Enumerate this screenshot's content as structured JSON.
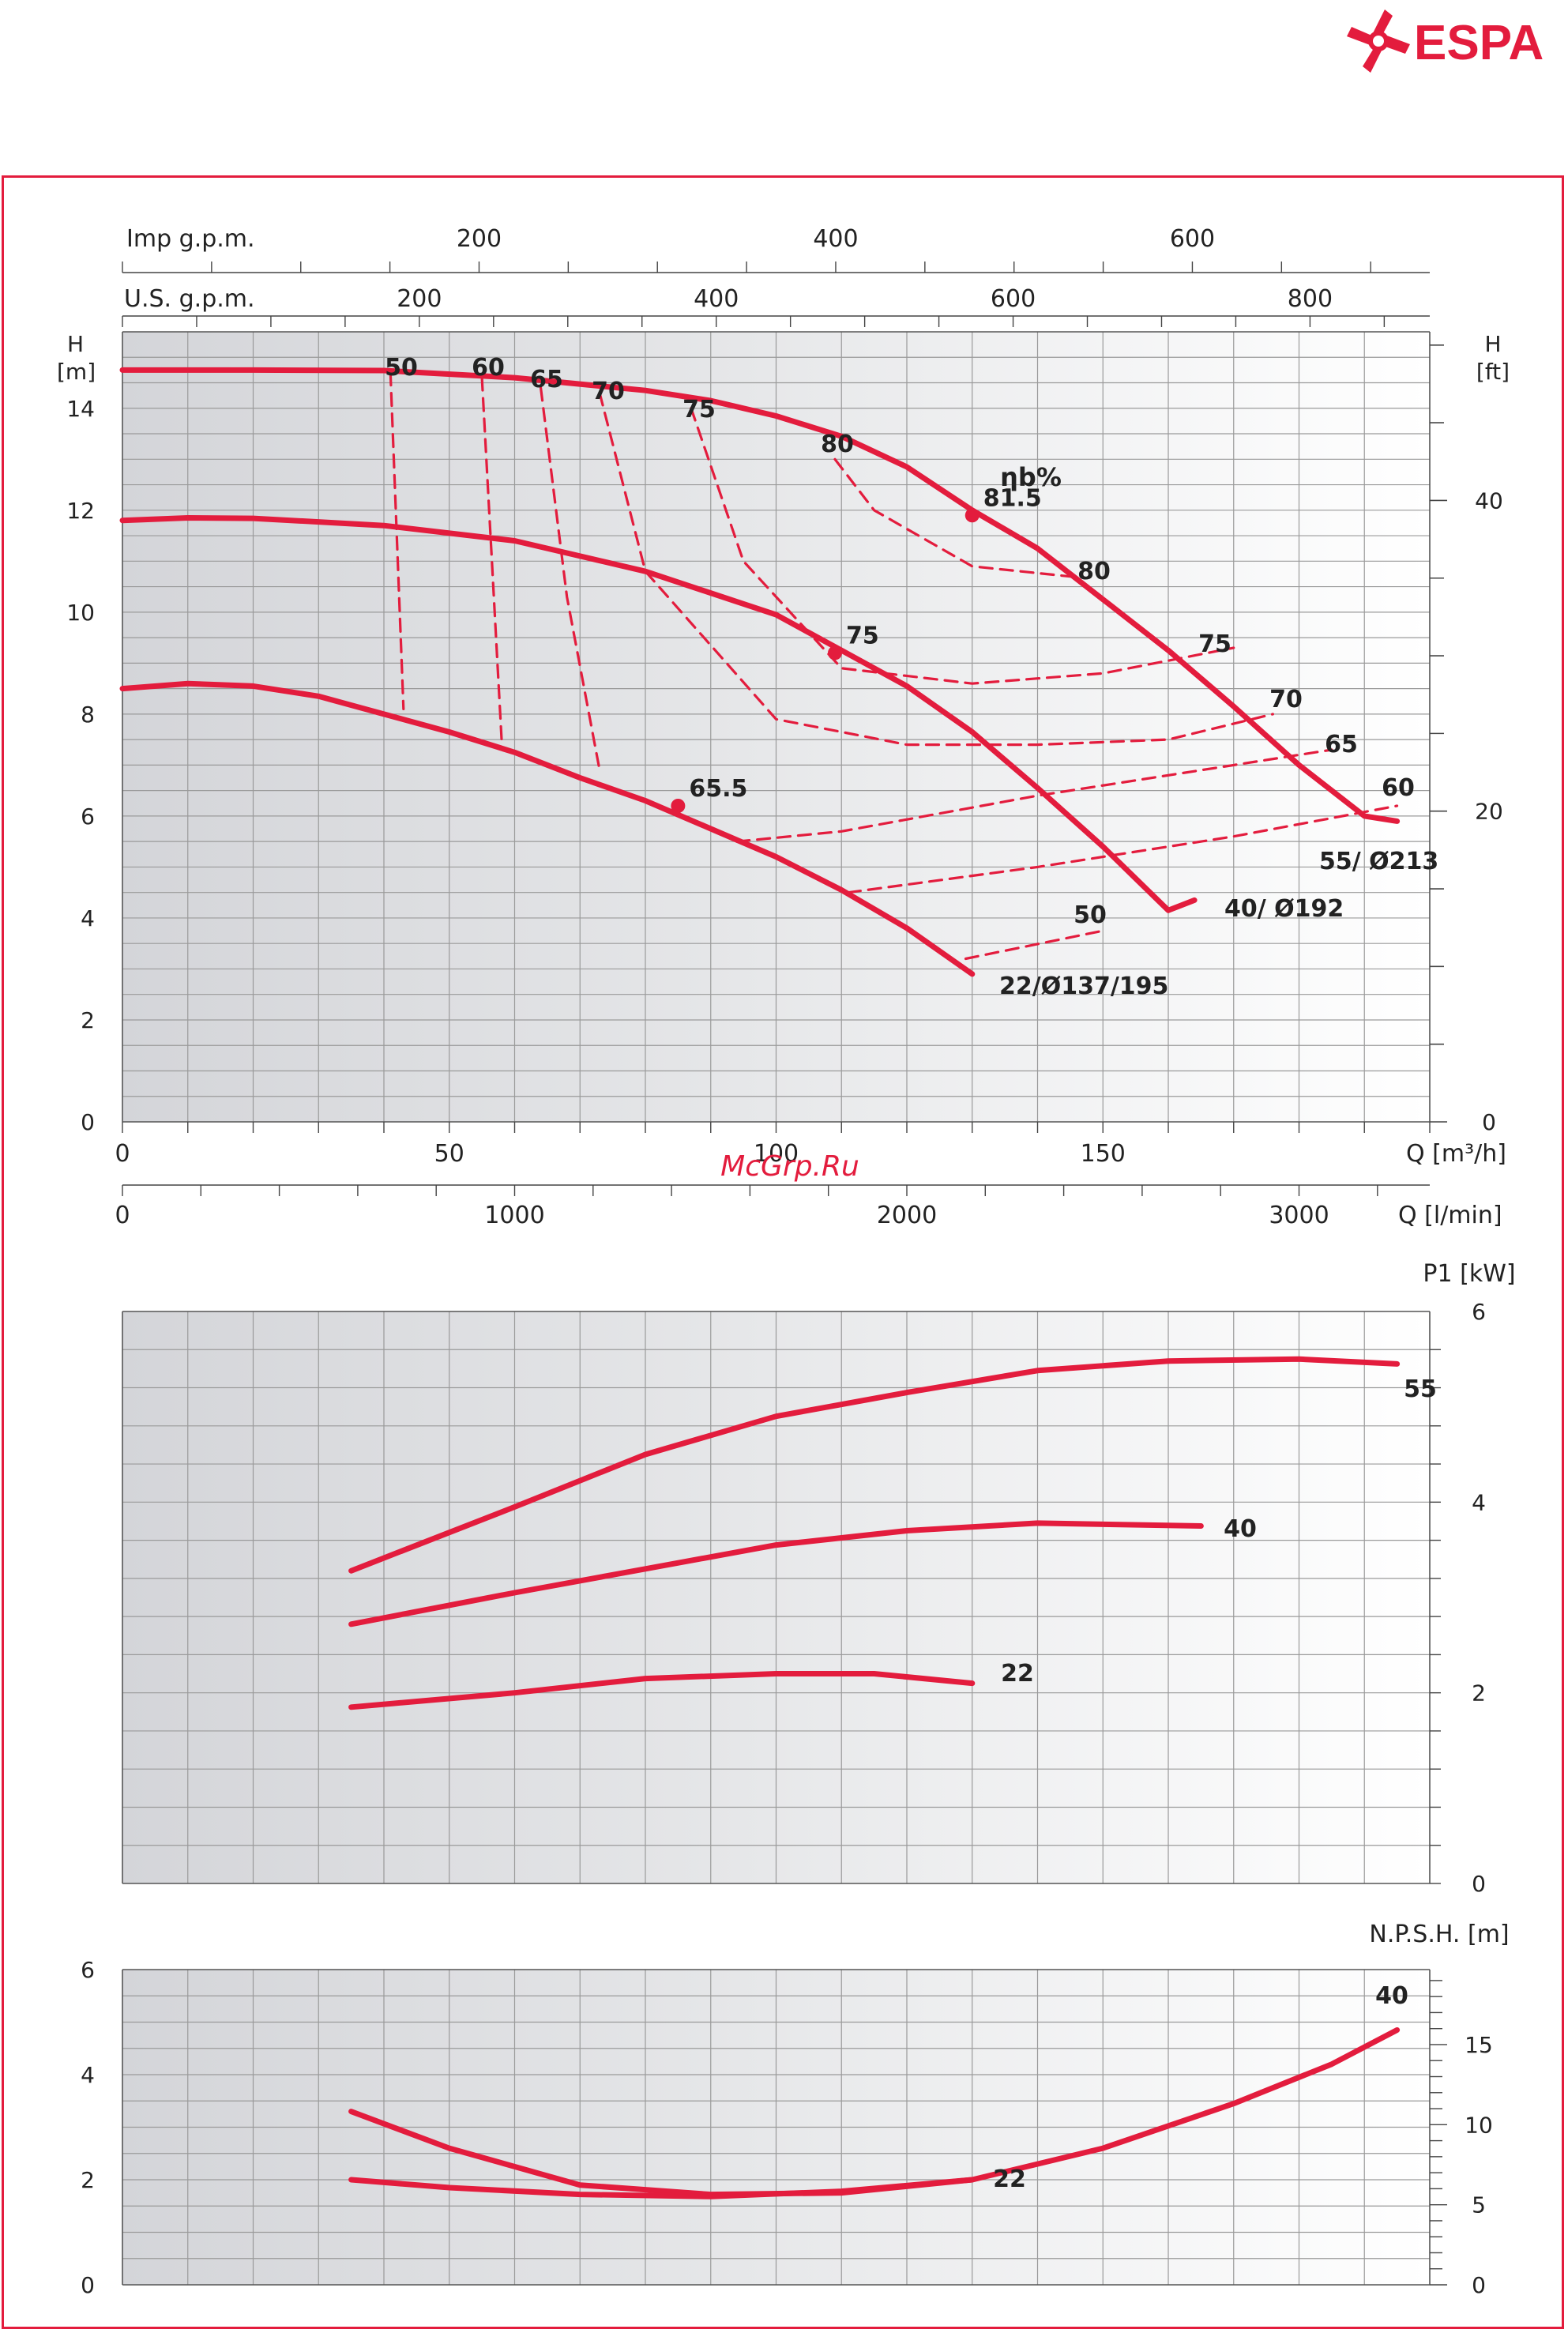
{
  "brand": {
    "name": "ESPA",
    "color": "#e31c3d"
  },
  "watermark": "McGrp.Ru",
  "colors": {
    "curve": "#e31c3d",
    "grid": "#9a9a9a",
    "plot_bg_left": "#d4d5d9",
    "plot_bg_right": "#ffffff"
  },
  "chart_data": [
    {
      "id": "head",
      "type": "line",
      "ylabel_left": "H [m]",
      "ylabel_left_lines": [
        "H",
        "[m]"
      ],
      "ylabel_right": "H [ft]",
      "ylabel_right_lines": [
        "H",
        "[ft]"
      ],
      "xlabel_bottom": "Q [m³/h]",
      "xlabel_secondary": "Q [l/min]",
      "top_axes": [
        {
          "label": "Imp g.p.m.",
          "ticks": [
            200,
            400,
            600
          ]
        },
        {
          "label": "U.S. g.p.m.",
          "ticks": [
            200,
            400,
            600,
            800
          ]
        }
      ],
      "xlim": [
        0,
        200
      ],
      "ylim": [
        0,
        15.5
      ],
      "x_ticks": [
        0,
        50,
        100,
        150
      ],
      "lmin_ticks": [
        0,
        1000,
        2000,
        3000
      ],
      "y_ticks": [
        0,
        2,
        4,
        6,
        8,
        10,
        12,
        14
      ],
      "ft_ticks": [
        0,
        20,
        40
      ],
      "grid": true,
      "series": [
        {
          "name": "55/ Ø213",
          "x": [
            0,
            20,
            40,
            60,
            80,
            90,
            100,
            110,
            120,
            130,
            140,
            150,
            160,
            170,
            180,
            190,
            195
          ],
          "y": [
            14.75,
            14.75,
            14.74,
            14.6,
            14.35,
            14.15,
            13.85,
            13.45,
            12.85,
            12.0,
            11.25,
            10.25,
            9.25,
            8.15,
            7.0,
            6.0,
            5.9
          ]
        },
        {
          "name": "40/ Ø192",
          "x": [
            0,
            10,
            20,
            40,
            60,
            80,
            100,
            110,
            120,
            130,
            140,
            150,
            160,
            164
          ],
          "y": [
            11.8,
            11.85,
            11.84,
            11.7,
            11.4,
            10.8,
            9.95,
            9.25,
            8.55,
            7.65,
            6.55,
            5.4,
            4.15,
            4.35
          ]
        },
        {
          "name": "22/Ø137/195",
          "x": [
            0,
            10,
            20,
            30,
            40,
            50,
            60,
            70,
            80,
            90,
            100,
            110,
            120,
            130
          ],
          "y": [
            8.5,
            8.6,
            8.55,
            8.35,
            8.0,
            7.65,
            7.25,
            6.75,
            6.3,
            5.75,
            5.2,
            4.55,
            3.8,
            2.9
          ]
        }
      ],
      "curve_labels": [
        "55/ Ø213",
        "40/ Ø192",
        "22/Ø137/195"
      ],
      "efficiency": {
        "title": "ηb%",
        "best_points": [
          {
            "label": "81.5",
            "x": 130,
            "y": 11.9
          },
          {
            "label": "75",
            "x": 109,
            "y": 9.2
          },
          {
            "label": "65.5",
            "x": 85,
            "y": 6.2
          }
        ],
        "labels_top": [
          "50",
          "60",
          "65",
          "70",
          "75",
          "80"
        ],
        "labels_right": [
          "80",
          "75",
          "70",
          "65",
          "60",
          "50"
        ],
        "curves": [
          {
            "name": "50",
            "x": [
              41,
              43
            ],
            "y": [
              14.7,
              8.1
            ]
          },
          {
            "name": "60",
            "x": [
              55,
              58
            ],
            "y": [
              14.6,
              7.5
            ]
          },
          {
            "name": "65",
            "x": [
              64,
              68,
              73
            ],
            "y": [
              14.4,
              10.3,
              6.9
            ]
          },
          {
            "name": "70",
            "x": [
              73,
              80,
              100,
              120,
              140,
              160,
              176
            ],
            "y": [
              14.3,
              10.8,
              7.9,
              7.4,
              7.4,
              7.5,
              8.0
            ]
          },
          {
            "name": "75",
            "x": [
              87,
              95,
              110,
              130,
              150,
              170
            ],
            "y": [
              14.0,
              11.0,
              8.9,
              8.6,
              8.8,
              9.3
            ]
          },
          {
            "name": "80",
            "x": [
              109,
              115,
              130,
              145
            ],
            "y": [
              13.0,
              12.0,
              10.9,
              10.7
            ]
          },
          {
            "name": "65",
            "x": [
              94,
              110,
              140,
              170,
              185
            ],
            "y": [
              5.5,
              5.7,
              6.4,
              7.0,
              7.3
            ]
          },
          {
            "name": "60",
            "x": [
              111,
              140,
              170,
              195
            ],
            "y": [
              4.5,
              5.0,
              5.6,
              6.2
            ]
          },
          {
            "name": "50",
            "x": [
              129,
              150
            ],
            "y": [
              3.2,
              3.75
            ]
          }
        ]
      }
    },
    {
      "id": "power",
      "type": "line",
      "ylabel": "P1 [kW]",
      "ylim": [
        0,
        6
      ],
      "y_ticks": [
        0,
        2,
        4,
        6
      ],
      "grid": true,
      "series": [
        {
          "name": "55",
          "x": [
            35,
            60,
            80,
            100,
            120,
            140,
            160,
            180,
            195
          ],
          "y": [
            3.28,
            3.95,
            4.5,
            4.9,
            5.15,
            5.38,
            5.48,
            5.5,
            5.45
          ]
        },
        {
          "name": "40",
          "x": [
            35,
            60,
            80,
            100,
            120,
            140,
            165
          ],
          "y": [
            2.72,
            3.05,
            3.3,
            3.55,
            3.7,
            3.78,
            3.75
          ]
        },
        {
          "name": "22",
          "x": [
            35,
            60,
            80,
            100,
            115,
            130
          ],
          "y": [
            1.85,
            2.0,
            2.15,
            2.2,
            2.2,
            2.1
          ]
        }
      ]
    },
    {
      "id": "npsh",
      "type": "line",
      "ylabel": "N.P.S.H. [m]",
      "ylim": [
        0,
        6
      ],
      "y_ticks": [
        0,
        2,
        4,
        6
      ],
      "ft_ticks": [
        0,
        5,
        10,
        15
      ],
      "grid": true,
      "series": [
        {
          "name": "40",
          "x": [
            35,
            50,
            70,
            90,
            110,
            130,
            150,
            170,
            185,
            195
          ],
          "y": [
            3.3,
            2.6,
            1.9,
            1.72,
            1.75,
            2.0,
            2.6,
            3.45,
            4.2,
            4.85
          ]
        },
        {
          "name": "22",
          "x": [
            35,
            50,
            70,
            90,
            110,
            130
          ],
          "y": [
            2.0,
            1.85,
            1.72,
            1.68,
            1.78,
            2.0
          ]
        }
      ]
    }
  ]
}
